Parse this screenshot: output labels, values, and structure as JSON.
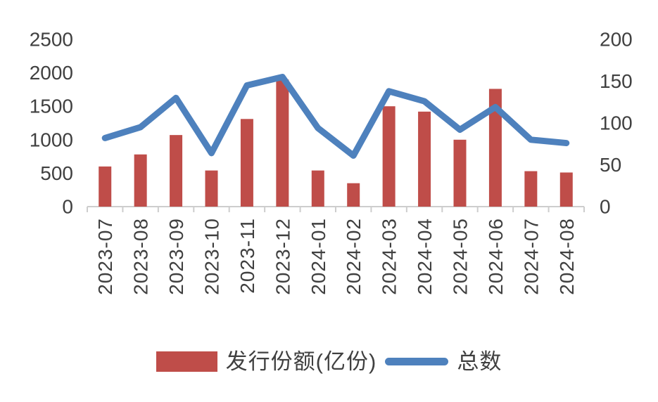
{
  "chart_data": {
    "type": "bar",
    "subtype": "bar-line-combo",
    "title": "",
    "categories": [
      "2023-07",
      "2023-08",
      "2023-09",
      "2023-10",
      "2023-11",
      "2023-12",
      "2024-01",
      "2024-02",
      "2024-03",
      "2024-04",
      "2024-05",
      "2024-06",
      "2024-07",
      "2024-08"
    ],
    "series": [
      {
        "name": "发行份额(亿份)",
        "type": "bar",
        "axis": "left",
        "color": "#BF4D49",
        "values": [
          600,
          780,
          1070,
          540,
          1310,
          1900,
          540,
          350,
          1500,
          1420,
          1000,
          1760,
          530,
          510
        ]
      },
      {
        "name": "总数",
        "type": "line",
        "axis": "right",
        "color": "#4E81BD",
        "values": [
          82,
          95,
          130,
          64,
          145,
          155,
          94,
          61,
          138,
          126,
          92,
          119,
          80,
          76
        ]
      }
    ],
    "left_axis": {
      "min": 0,
      "max": 2500,
      "ticks": [
        2500,
        2000,
        1500,
        1000,
        500,
        0
      ]
    },
    "right_axis": {
      "min": 0,
      "max": 200,
      "ticks": [
        200,
        150,
        100,
        50,
        0
      ]
    },
    "grid": false,
    "legend_position": "bottom",
    "x_tick_rotation_deg": 90
  },
  "colors": {
    "bar": "#BF4D49",
    "line": "#4E81BD",
    "text": "#404040",
    "axis": "#CDCDCD",
    "background": "#FFFFFF"
  }
}
